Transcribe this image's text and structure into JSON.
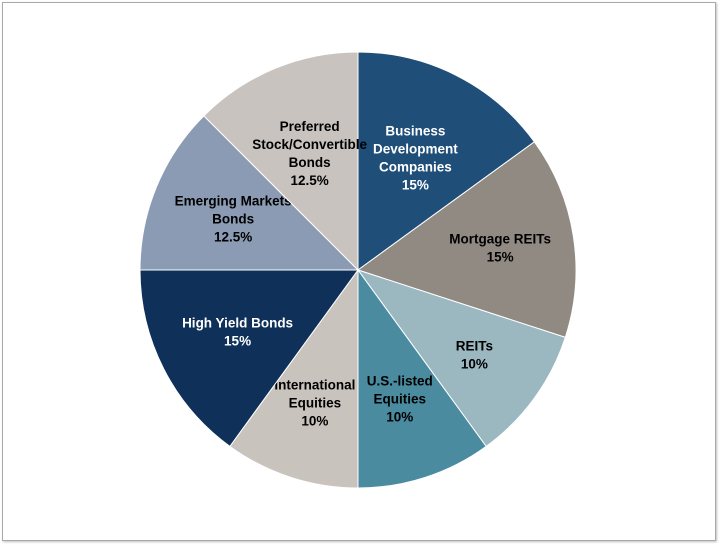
{
  "chart_data": {
    "type": "pie",
    "title": "",
    "slices": [
      {
        "lines": [
          "Business",
          "Development",
          "Companies",
          "15%"
        ],
        "value": 15,
        "color": "#1f4e79",
        "text_color": "#ffffff"
      },
      {
        "lines": [
          "Mortgage REITs",
          "15%"
        ],
        "value": 15,
        "color": "#918a83",
        "text_color": "#000000"
      },
      {
        "lines": [
          "REITs",
          "10%"
        ],
        "value": 10,
        "color": "#9bb8c1",
        "text_color": "#000000"
      },
      {
        "lines": [
          "U.S.-listed",
          "Equities",
          "10%"
        ],
        "value": 10,
        "color": "#4a8ba0",
        "text_color": "#000000"
      },
      {
        "lines": [
          "International",
          "Equities",
          "10%"
        ],
        "value": 10,
        "color": "#c9c3bd",
        "text_color": "#000000"
      },
      {
        "lines": [
          "High Yield Bonds",
          "15%"
        ],
        "value": 15,
        "color": "#0f3159",
        "text_color": "#ffffff"
      },
      {
        "lines": [
          "Emerging Markets",
          "Bonds",
          "12.5%"
        ],
        "value": 12.5,
        "color": "#8b9bb4",
        "text_color": "#000000"
      },
      {
        "lines": [
          "Preferred",
          "Stock/Convertible",
          "Bonds",
          "12.5%"
        ],
        "value": 12.5,
        "color": "#c8c3bf",
        "text_color": "#000000"
      }
    ],
    "start": "12 o'clock",
    "direction": "clockwise",
    "legend": "none"
  }
}
